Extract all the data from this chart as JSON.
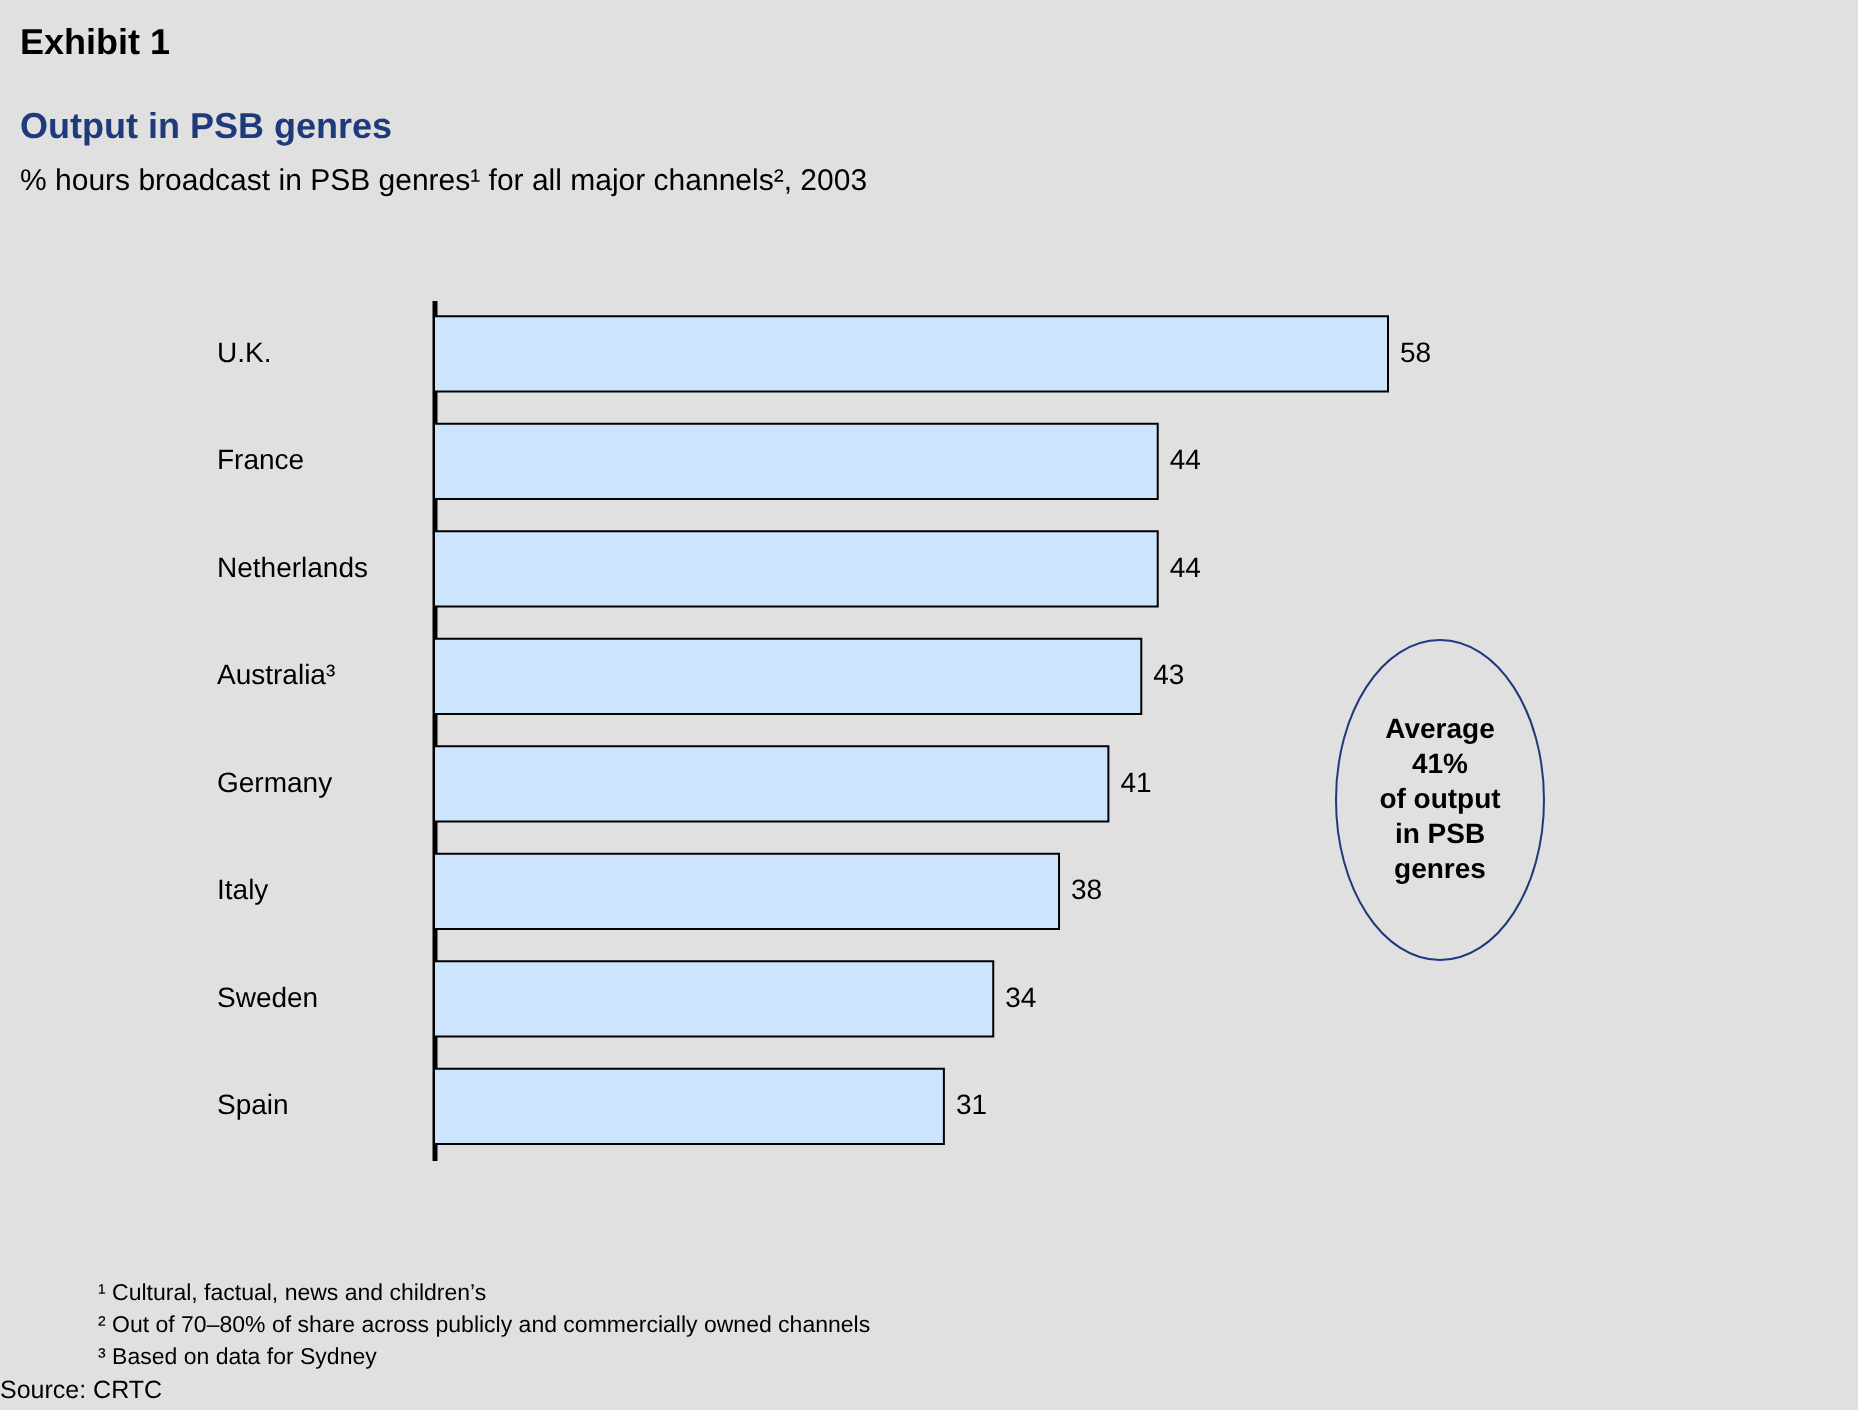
{
  "chart_data": {
    "type": "bar",
    "orientation": "horizontal",
    "title": "Output in PSB genres",
    "subtitle": "% hours broadcast in PSB genres¹ for all major channels², 2003",
    "categories": [
      "U.K.",
      "France",
      "Netherlands",
      "Australia³",
      "Germany",
      "Italy",
      "Sweden",
      "Spain"
    ],
    "values": [
      58,
      44,
      44,
      43,
      41,
      38,
      34,
      31
    ],
    "color": "#cce4fc",
    "data_labels": true,
    "annotations": [
      "Exhibit 1",
      "Average\n41%\nof output\nin PSB\ngenres",
      "¹ Cultural, factual, news and children’s",
      "² Out of 70–80% of share across publicly and commercially owned channels",
      "³ Based on data for Sydney",
      "Source: CRTC"
    ]
  }
}
